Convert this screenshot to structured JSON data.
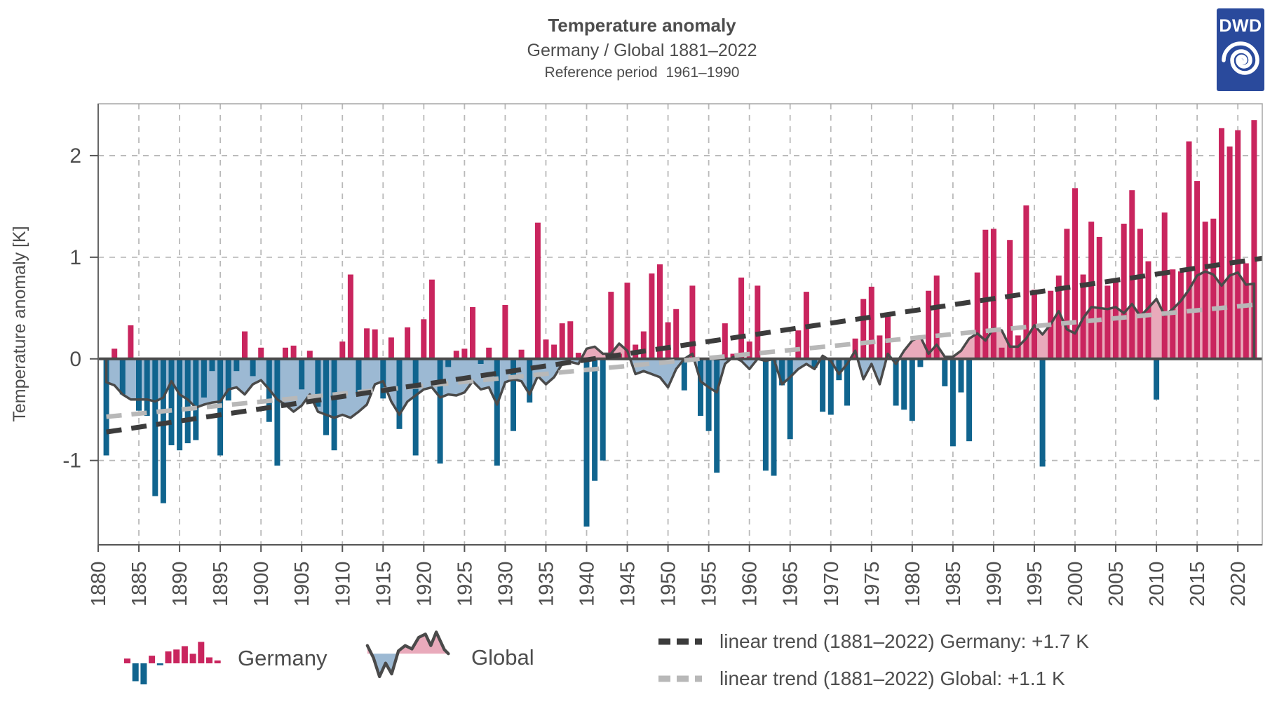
{
  "header": {
    "title": "Temperature anomaly",
    "subtitle": "Germany / Global 1881–2022",
    "reference": "Reference period  1961–1990"
  },
  "logo": {
    "text": "DWD"
  },
  "axes": {
    "y_label": "Temperature anomaly [K]",
    "y_ticks": [
      2,
      1,
      0,
      -1
    ],
    "x_ticks": [
      1880,
      1885,
      1890,
      1895,
      1900,
      1905,
      1910,
      1915,
      1920,
      1925,
      1930,
      1935,
      1940,
      1945,
      1950,
      1955,
      1960,
      1965,
      1970,
      1975,
      1980,
      1985,
      1990,
      1995,
      2000,
      2005,
      2010,
      2015,
      2020
    ]
  },
  "legend": {
    "germany_label": "Germany",
    "global_label": "Global",
    "mini_bars": [
      0.2,
      -0.75,
      -0.95,
      0.32,
      -0.08,
      0.5,
      0.58,
      0.72,
      0.4,
      0.9,
      0.25,
      0.12
    ]
  },
  "colors": {
    "germany_positive": "#c9255e",
    "germany_negative": "#10648e",
    "global_positive": "#e9aabb",
    "global_negative": "#9cb9d3",
    "series_outline": "#4a4a4a",
    "zero_line": "#4a4a4a",
    "trend_germany": "#3c3c3c",
    "trend_global": "#b8b8b8",
    "grid": "#b9b9b9",
    "frame": "#a6a6a6",
    "spine": "#666666",
    "text": "#4d4d4d",
    "logo_blue": "#2a4a9c"
  },
  "chart_data": {
    "type": "bar+area",
    "title": "Temperature anomaly",
    "subtitle": "Germany / Global 1881–2022",
    "reference_period": "Reference period 1961–1990",
    "ylabel": "Temperature anomaly [K]",
    "unit": "K",
    "grid": true,
    "years": {
      "start": 1881,
      "end": 2022
    },
    "xlim": [
      1880,
      2023
    ],
    "ylim": [
      -1.83,
      2.51
    ],
    "series": [
      {
        "name": "Germany",
        "style": "bar"
      },
      {
        "name": "Global",
        "style": "area"
      }
    ],
    "germany": [
      -0.95,
      0.1,
      -0.35,
      0.33,
      -0.51,
      -0.56,
      -1.35,
      -1.42,
      -0.85,
      -0.9,
      -0.83,
      -0.8,
      -0.38,
      -0.12,
      -0.95,
      -0.41,
      -0.12,
      0.27,
      -0.17,
      0.11,
      -0.62,
      -1.05,
      0.11,
      0.13,
      -0.3,
      0.08,
      -0.47,
      -0.75,
      -0.9,
      0.17,
      0.83,
      -0.35,
      0.3,
      0.29,
      -0.39,
      0.21,
      -0.69,
      0.31,
      -0.95,
      0.39,
      0.78,
      -1.03,
      -0.08,
      0.08,
      0.1,
      0.51,
      -0.05,
      0.11,
      -1.05,
      0.53,
      -0.71,
      0.09,
      -0.43,
      1.34,
      0.19,
      0.14,
      0.35,
      0.37,
      0.06,
      -1.65,
      -1.2,
      -1.0,
      0.66,
      0.05,
      0.75,
      0.14,
      0.27,
      0.84,
      0.93,
      0.36,
      0.49,
      -0.31,
      0.72,
      -0.56,
      -0.71,
      -1.12,
      0.35,
      0.05,
      0.8,
      0.17,
      0.72,
      -1.1,
      -1.15,
      -0.26,
      -0.79,
      0.28,
      0.66,
      -0.09,
      -0.52,
      -0.55,
      -0.21,
      -0.46,
      0.2,
      0.59,
      0.71,
      0.23,
      0.45,
      -0.46,
      -0.5,
      -0.61,
      -0.08,
      0.67,
      0.82,
      -0.27,
      -0.86,
      -0.33,
      -0.81,
      0.85,
      1.27,
      1.28,
      0.11,
      1.17,
      0.23,
      1.51,
      0.68,
      -1.06,
      0.67,
      0.82,
      1.28,
      1.68,
      0.83,
      1.35,
      1.2,
      0.72,
      0.77,
      1.33,
      1.66,
      1.28,
      0.96,
      -0.4,
      1.44,
      0.88,
      0.86,
      2.14,
      1.75,
      1.35,
      1.38,
      2.27,
      2.09,
      2.25,
      0.94,
      2.35
    ],
    "global": [
      -0.23,
      -0.26,
      -0.35,
      -0.4,
      -0.4,
      -0.4,
      -0.42,
      -0.38,
      -0.22,
      -0.35,
      -0.4,
      -0.48,
      -0.45,
      -0.43,
      -0.42,
      -0.3,
      -0.28,
      -0.35,
      -0.25,
      -0.21,
      -0.3,
      -0.4,
      -0.45,
      -0.52,
      -0.46,
      -0.35,
      -0.52,
      -0.55,
      -0.58,
      -0.55,
      -0.58,
      -0.52,
      -0.45,
      -0.25,
      -0.22,
      -0.42,
      -0.55,
      -0.42,
      -0.36,
      -0.3,
      -0.28,
      -0.38,
      -0.35,
      -0.36,
      -0.33,
      -0.22,
      -0.3,
      -0.28,
      -0.45,
      -0.23,
      -0.2,
      -0.22,
      -0.35,
      -0.17,
      -0.25,
      -0.18,
      -0.05,
      -0.03,
      -0.05,
      0.1,
      0.12,
      0.05,
      0.05,
      0.15,
      0.08,
      -0.15,
      -0.12,
      -0.15,
      -0.18,
      -0.28,
      -0.1,
      0.0,
      0.05,
      -0.22,
      -0.28,
      -0.33,
      -0.05,
      0.02,
      -0.02,
      -0.1,
      0.0,
      -0.02,
      0.0,
      -0.25,
      -0.18,
      -0.1,
      -0.05,
      -0.1,
      0.03,
      -0.02,
      -0.15,
      -0.05,
      0.08,
      -0.2,
      -0.05,
      -0.25,
      0.05,
      -0.05,
      0.08,
      0.18,
      0.22,
      0.05,
      0.14,
      0.02,
      0.02,
      0.08,
      0.2,
      0.25,
      0.18,
      0.3,
      0.28,
      0.12,
      0.12,
      0.2,
      0.33,
      0.24,
      0.34,
      0.47,
      0.29,
      0.25,
      0.4,
      0.51,
      0.5,
      0.49,
      0.51,
      0.45,
      0.54,
      0.42,
      0.5,
      0.59,
      0.43,
      0.49,
      0.57,
      0.68,
      0.82,
      0.86,
      0.83,
      0.72,
      0.82,
      0.85,
      0.73,
      0.74
    ],
    "trends": {
      "germany": {
        "label": "linear trend (1881–2022) Germany: +1.7 K",
        "total_change_k": 1.7,
        "v1881": -0.72,
        "v2023": 0.99
      },
      "global": {
        "label": "linear trend (1881–2022) Global: +1.1 K",
        "total_change_k": 1.1,
        "v1881": -0.57,
        "v2023": 0.54
      }
    },
    "legend_position": "bottom"
  }
}
